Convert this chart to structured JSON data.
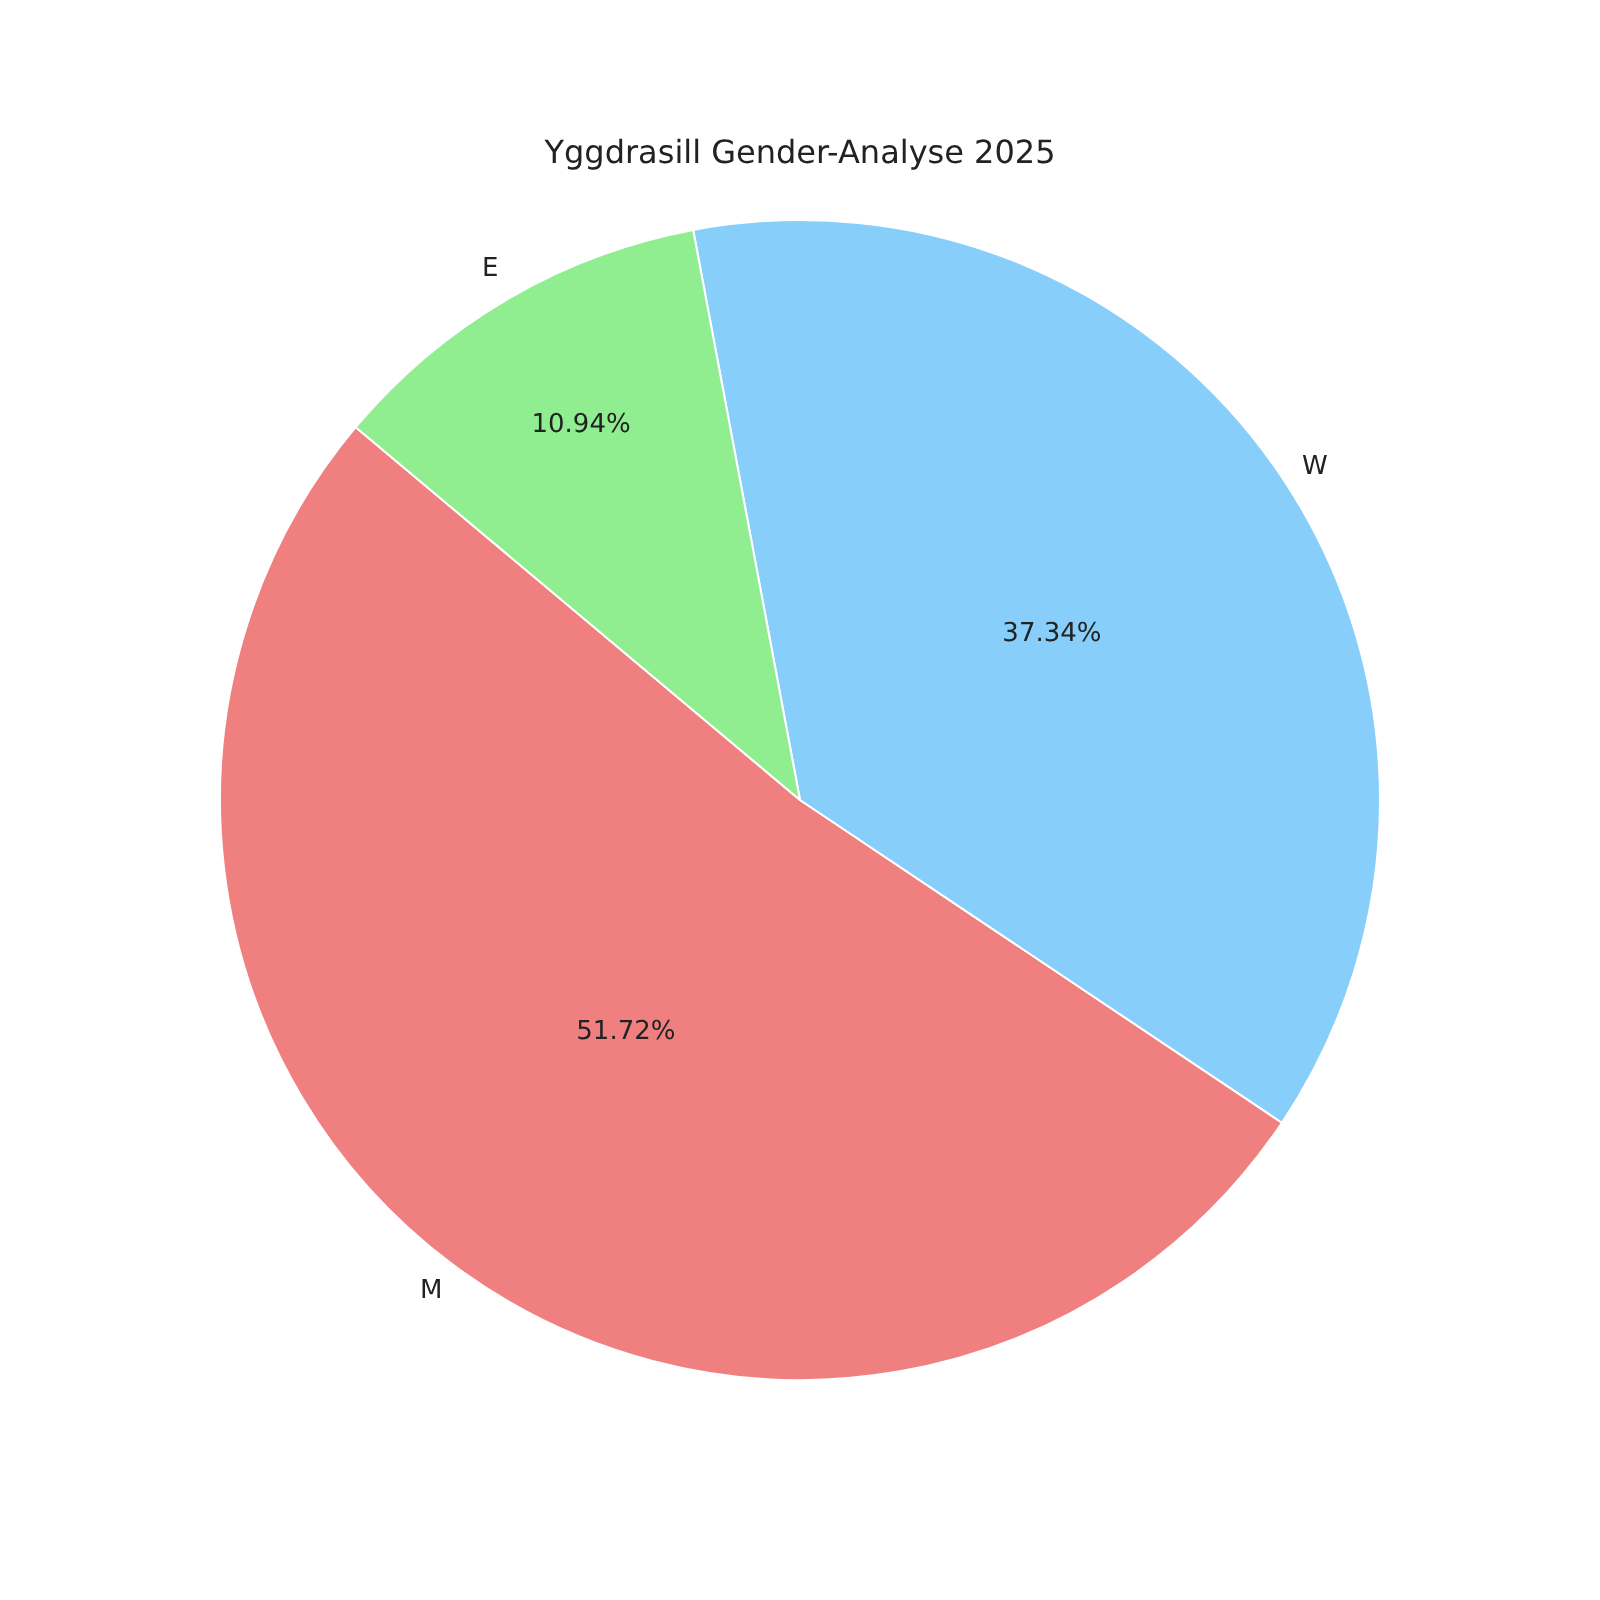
{
  "chart_data": {
    "type": "pie",
    "title": "Yggdrasill Gender-Analyse 2025",
    "categories": [
      "M",
      "W",
      "E"
    ],
    "values": [
      51.72,
      37.34,
      10.94
    ],
    "value_labels": [
      "51.72%",
      "37.34%",
      "10.94%"
    ],
    "colors": [
      "#f08080",
      "#87cefa",
      "#90ee90"
    ],
    "legend": false
  }
}
